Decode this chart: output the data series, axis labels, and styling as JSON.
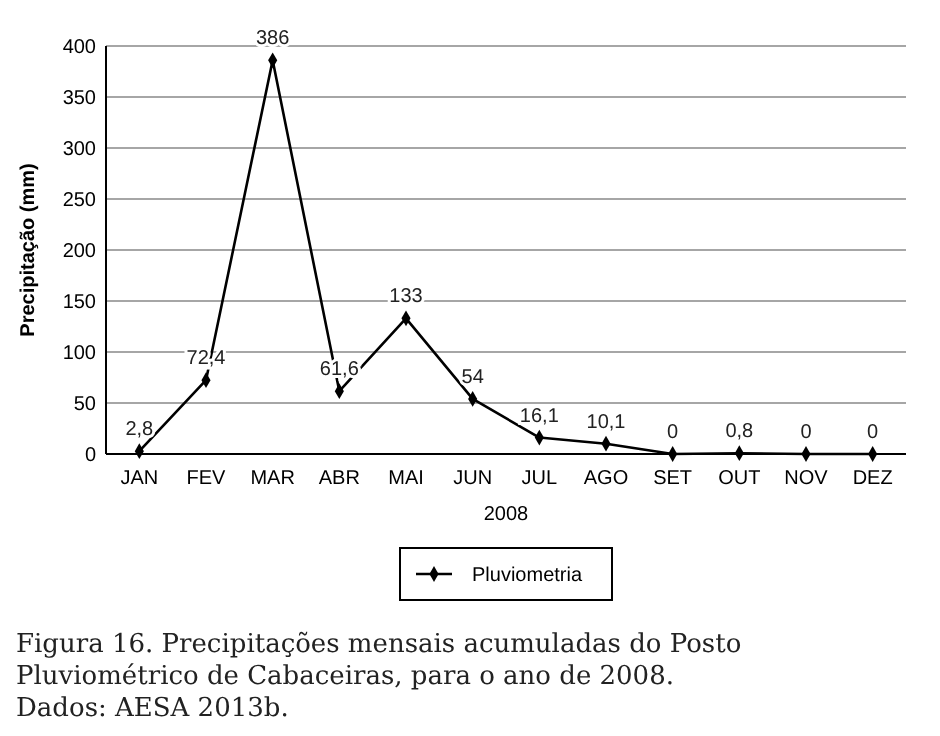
{
  "chart_data": {
    "type": "line",
    "xlabel": "2008",
    "ylabel": "Precipitação (mm)",
    "categories": [
      "JAN",
      "FEV",
      "MAR",
      "ABR",
      "MAI",
      "JUN",
      "JUL",
      "AGO",
      "SET",
      "OUT",
      "NOV",
      "DEZ"
    ],
    "series": [
      {
        "name": "Pluviometria",
        "color": "#000000",
        "values": [
          2.8,
          72.4,
          386,
          61.6,
          133,
          54,
          16.1,
          10.1,
          0,
          0.8,
          0,
          0
        ],
        "value_labels": [
          "2,8",
          "72,4",
          "386",
          "61,6",
          "133",
          "54",
          "16,1",
          "10,1",
          "0",
          "0,8",
          "0",
          "0"
        ]
      }
    ],
    "ylim": [
      0,
      400
    ],
    "yticks": [
      0,
      50,
      100,
      150,
      200,
      250,
      300,
      350,
      400
    ],
    "grid": "y",
    "legend": "bottom",
    "marker": "diamond",
    "line_style": "solid",
    "annotations": [
      "Figura 16. Precipitações mensais acumuladas do Posto Pluviométrico de Cabaceiras, para o ano de 2008.",
      "Dados: AESA 2013b."
    ]
  }
}
